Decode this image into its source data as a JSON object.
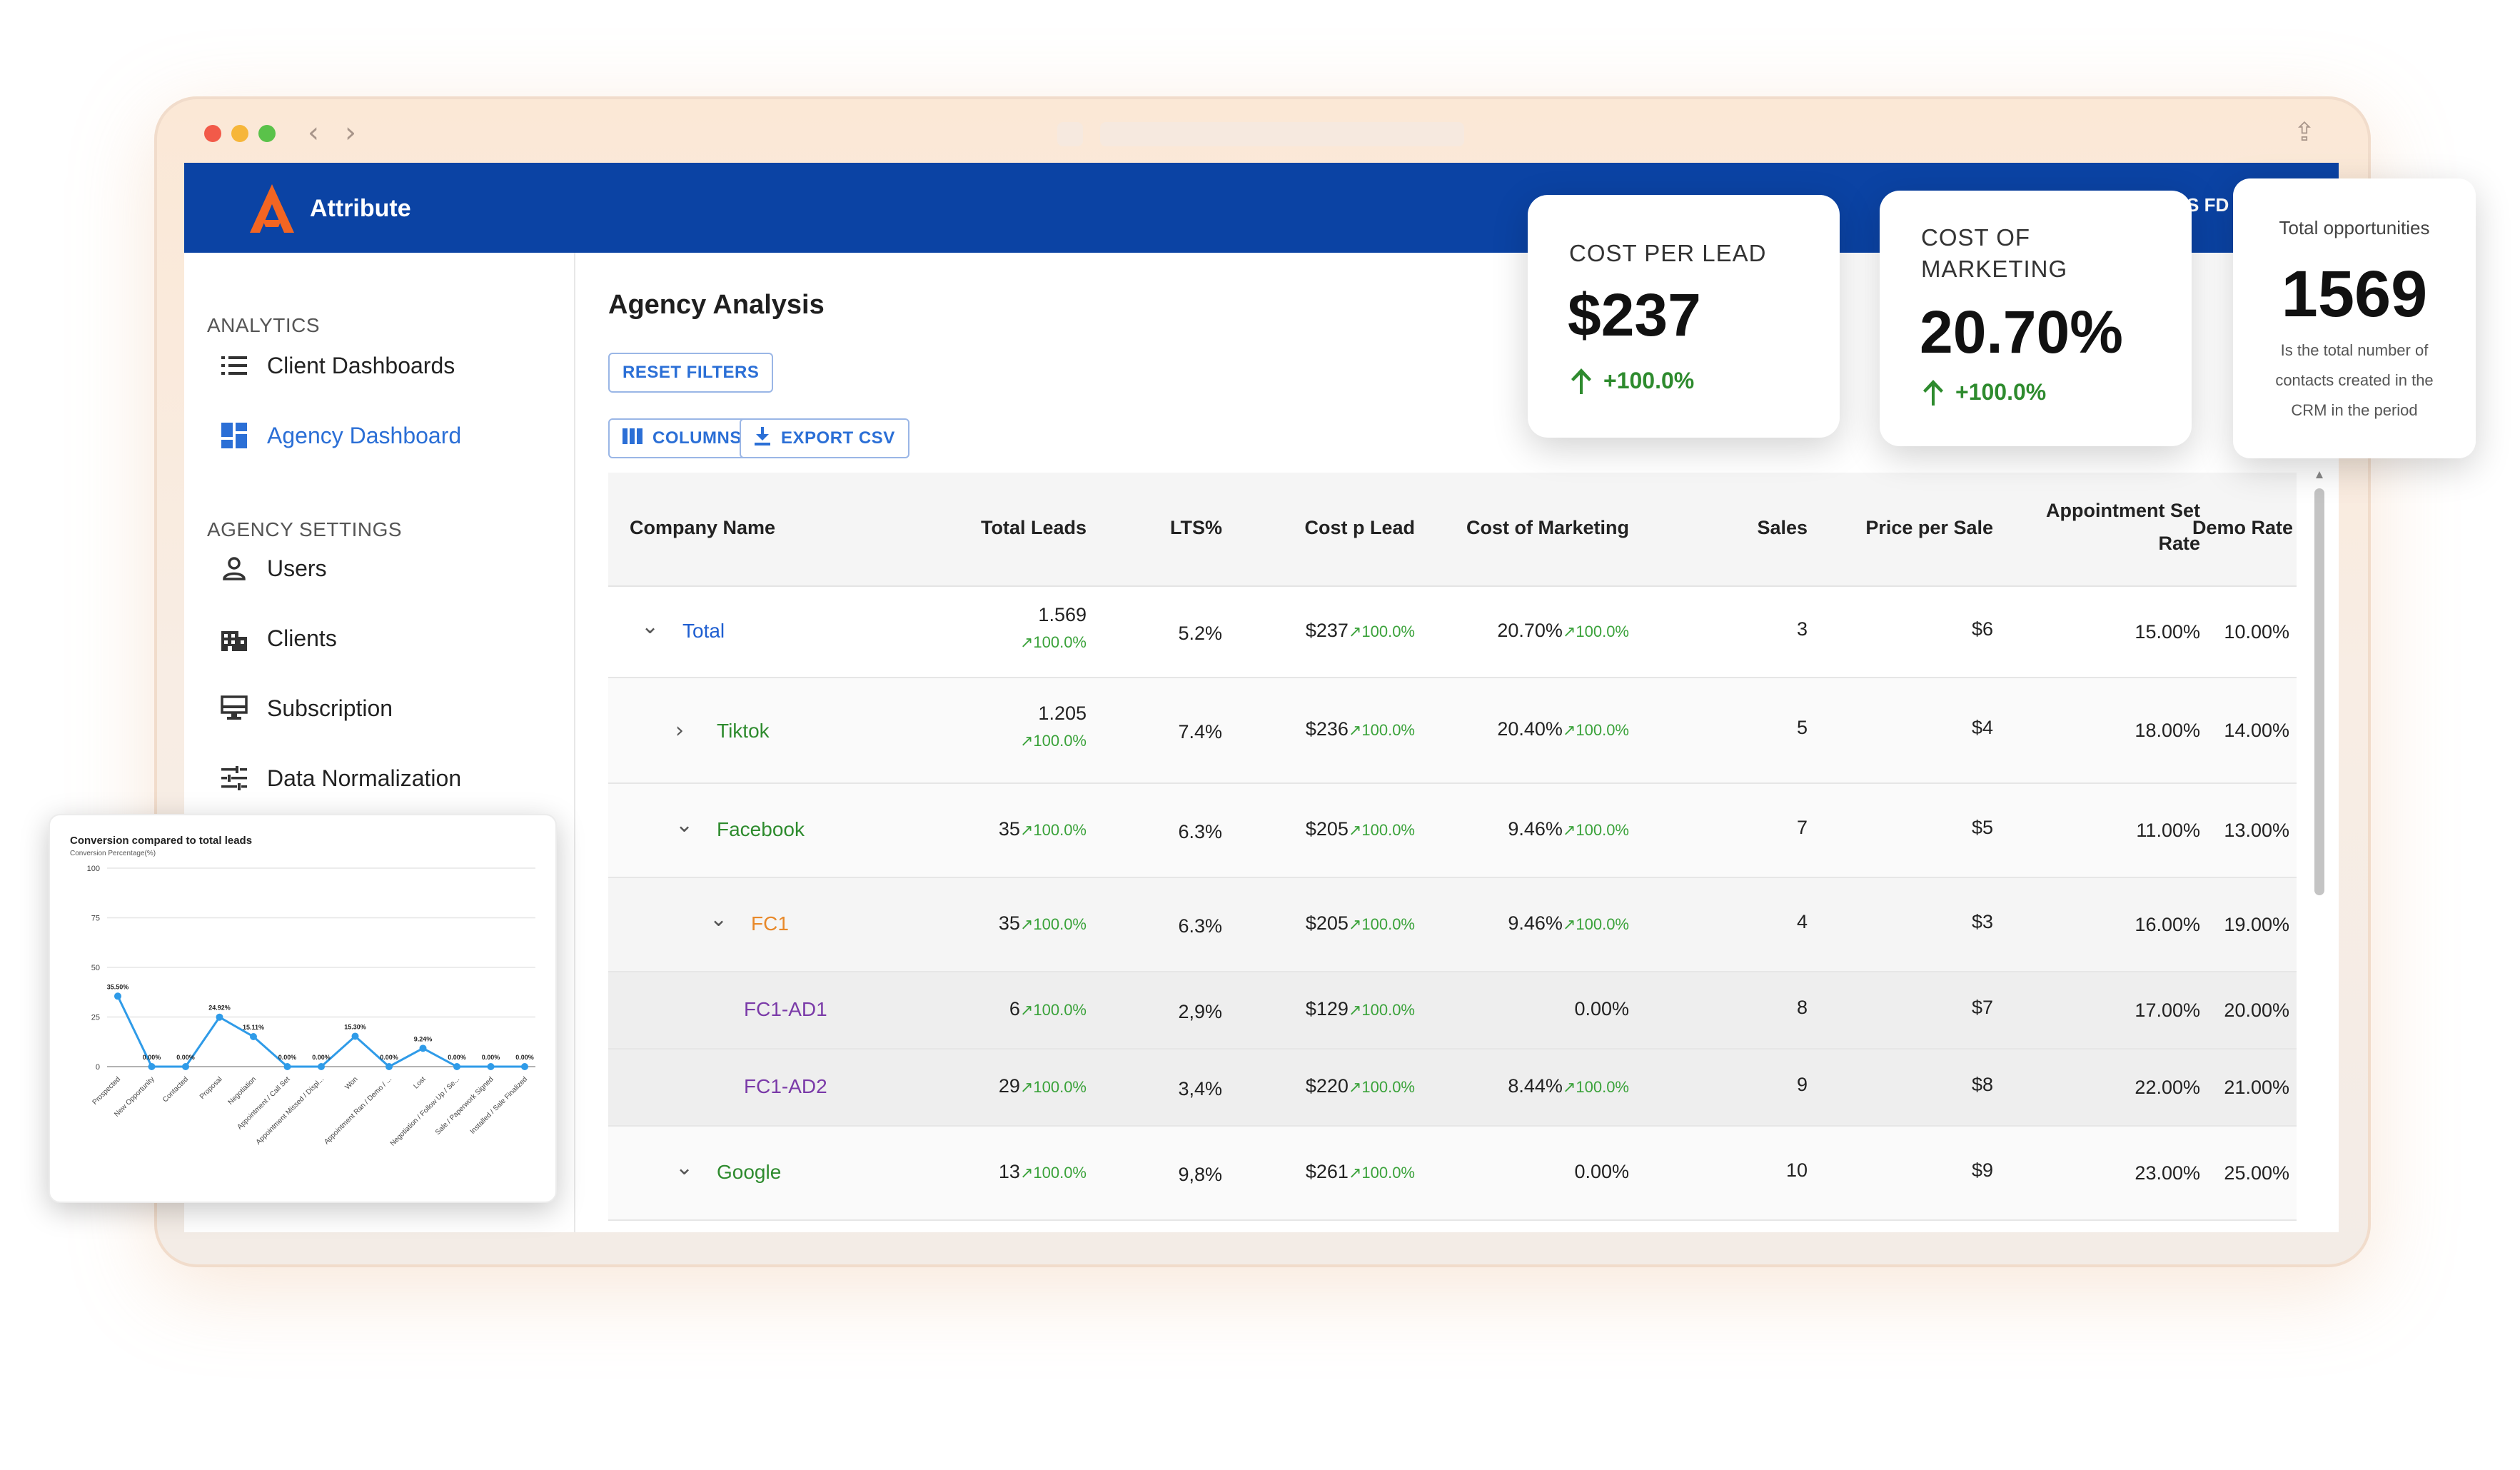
{
  "app": {
    "brand": "Attribute",
    "user_tag": "S FD"
  },
  "sidebar": {
    "analytics_title": "ANALYTICS",
    "analytics_items": [
      {
        "label": "Client Dashboards",
        "icon": "list-icon"
      },
      {
        "label": "Agency Dashboard",
        "icon": "dashboard-icon",
        "active": true
      }
    ],
    "settings_title": "AGENCY SETTINGS",
    "settings_items": [
      {
        "label": "Users",
        "icon": "person-icon"
      },
      {
        "label": "Clients",
        "icon": "building-icon"
      },
      {
        "label": "Subscription",
        "icon": "monitor-icon"
      },
      {
        "label": "Data Normalization",
        "icon": "sliders-icon"
      }
    ]
  },
  "main": {
    "title": "Agency Analysis",
    "reset_label": "RESET FILTERS",
    "columns_label": "COLUMNS",
    "export_label": "EXPORT CSV"
  },
  "table": {
    "headers": [
      "Company Name",
      "Total Leads",
      "LTS%",
      "Cost p Lead",
      "Cost of Marketing",
      "Sales",
      "Price per Sale",
      "Appointment Set Rate",
      "Demo Rate"
    ],
    "trend_label": "100.0%",
    "rows": [
      {
        "name": "Total",
        "level": 0,
        "expand": "v",
        "color": "#1f5fd1",
        "leads": "1.569",
        "lts": "5.2%",
        "cpl": "$237",
        "com": "20.70%",
        "sales": "3",
        "pps": "$6",
        "asr": "15.00%",
        "demo": "10.00%",
        "com_trend": true
      },
      {
        "name": "Tiktok",
        "level": 1,
        "expand": ">",
        "color": "#2e8b2e",
        "leads": "1.205",
        "lts": "7.4%",
        "cpl": "$236",
        "com": "20.40%",
        "sales": "5",
        "pps": "$4",
        "asr": "18.00%",
        "demo": "14.00%",
        "com_trend": true
      },
      {
        "name": "Facebook",
        "level": 1,
        "expand": "v",
        "color": "#2e8b2e",
        "leads": "35",
        "lts": "6.3%",
        "cpl": "$205",
        "com": "9.46%",
        "sales": "7",
        "pps": "$5",
        "asr": "11.00%",
        "demo": "13.00%",
        "com_trend": true
      },
      {
        "name": "FC1",
        "level": 2,
        "expand": "v",
        "color": "#e8892a",
        "leads": "35",
        "lts": "6.3%",
        "cpl": "$205",
        "com": "9.46%",
        "sales": "4",
        "pps": "$3",
        "asr": "16.00%",
        "demo": "19.00%",
        "com_trend": true
      },
      {
        "name": "FC1-AD1",
        "level": 3,
        "expand": "",
        "color": "#7a3aa8",
        "leads": "6",
        "lts": "2,9%",
        "cpl": "$129",
        "com": "0.00%",
        "sales": "8",
        "pps": "$7",
        "asr": "17.00%",
        "demo": "20.00%",
        "com_trend": false
      },
      {
        "name": "FC1-AD2",
        "level": 3,
        "expand": "",
        "color": "#7a3aa8",
        "leads": "29",
        "lts": "3,4%",
        "cpl": "$220",
        "com": "8.44%",
        "sales": "9",
        "pps": "$8",
        "asr": "22.00%",
        "demo": "21.00%",
        "com_trend": true
      },
      {
        "name": "Google",
        "level": 1,
        "expand": "v",
        "color": "#2e8b2e",
        "leads": "13",
        "lts": "9,8%",
        "cpl": "$261",
        "com": "0.00%",
        "sales": "10",
        "pps": "$9",
        "asr": "23.00%",
        "demo": "25.00%",
        "com_trend": false
      }
    ]
  },
  "kpis": {
    "cpl": {
      "label": "COST PER LEAD",
      "value": "$237",
      "delta": "+100.0%"
    },
    "com": {
      "label": "COST OF MARKETING",
      "value": "20.70%",
      "delta": "+100.0%"
    },
    "opps": {
      "label": "Total opportunities",
      "value": "1569",
      "desc": "Is the total number of contacts created in the CRM in the period"
    }
  },
  "colors": {
    "primary": "#0b43a4",
    "accent": "#2b6fd6",
    "positive": "#2e8b2e",
    "brand_orange": "#f26522"
  },
  "chart_data": {
    "type": "line",
    "title": "Conversion compared to total leads",
    "ylabel": "Conversion Percentage(%)",
    "xlabel": "",
    "ylim": [
      0,
      100
    ],
    "yticks": [
      0,
      25,
      50,
      75,
      100
    ],
    "categories": [
      "Prospected",
      "New Opportunity",
      "Contacted",
      "Proposal",
      "Negotiation",
      "Appointment / Call Set",
      "Appointment Missed / Displ...",
      "Won",
      "Appointment Ran / Demo / ...",
      "Lost",
      "Negotiation / Follow Up / Se...",
      "Sale / Paperwork Signed",
      "Installed / Sale Finalized"
    ],
    "values": [
      35.5,
      0,
      0,
      24.92,
      15.11,
      0,
      0,
      15.3,
      0,
      9.24,
      0,
      0,
      0
    ],
    "labels": [
      "35.50%",
      "0.00%",
      "0.00%",
      "24.92%",
      "15.11%",
      "0.00%",
      "0.00%",
      "15.30%",
      "0.00%",
      "9.24%",
      "0.00%",
      "0.00%",
      "0.00%"
    ],
    "grid": true,
    "color": "#2f9be8"
  }
}
